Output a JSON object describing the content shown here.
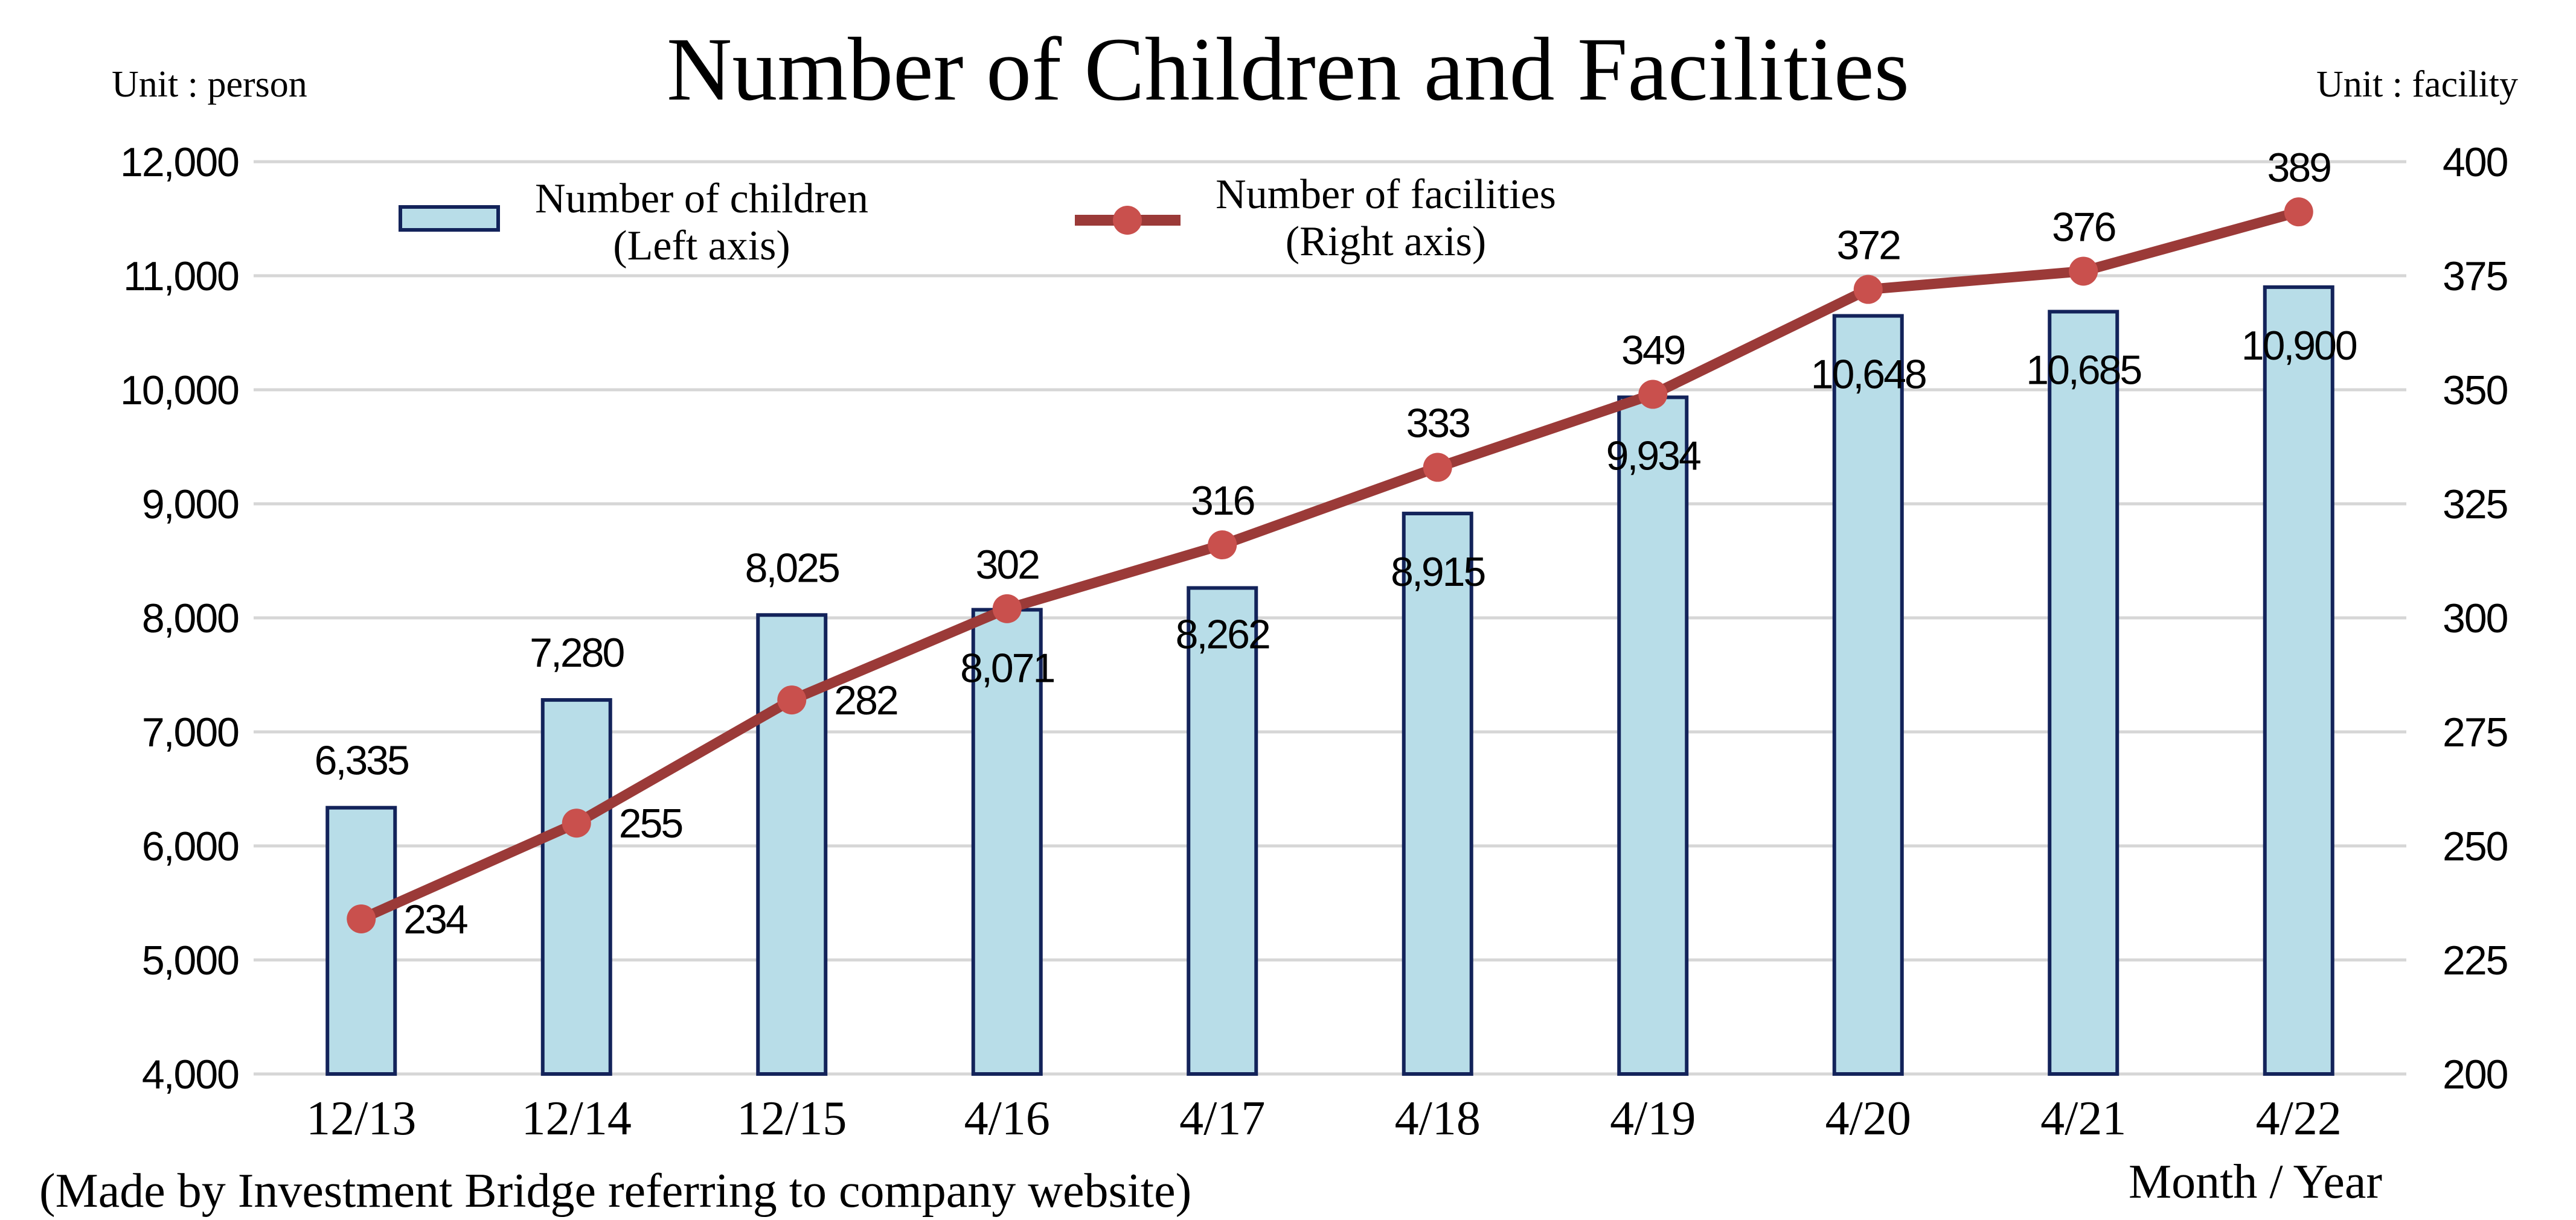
{
  "chart_data": {
    "type": "bar",
    "title": "Number of Children and Facilities",
    "left_unit": "Unit : person",
    "right_unit": "Unit : facility",
    "xlabel": "Month / Year",
    "source_note": "(Made by Investment Bridge referring to company website)",
    "categories": [
      "12/13",
      "12/14",
      "12/15",
      "4/16",
      "4/17",
      "4/18",
      "4/19",
      "4/20",
      "4/21",
      "4/22"
    ],
    "series": [
      {
        "name": "Number of children",
        "legend_sub": "(Left axis)",
        "type": "bar",
        "axis": "left",
        "values": [
          6335,
          7280,
          8025,
          8071,
          8262,
          8915,
          9934,
          10648,
          10685,
          10900
        ],
        "labels": [
          "6,335",
          "7,280",
          "8,025",
          "8,071",
          "8,262",
          "8,915",
          "9,934",
          "10,648",
          "10,685",
          "10,900"
        ]
      },
      {
        "name": "Number of facilities",
        "legend_sub": "(Right axis)",
        "type": "line",
        "axis": "right",
        "values": [
          234,
          255,
          282,
          302,
          316,
          333,
          349,
          372,
          376,
          389
        ],
        "labels": [
          "234",
          "255",
          "282",
          "302",
          "316",
          "333",
          "349",
          "372",
          "376",
          "389"
        ]
      }
    ],
    "y_left": {
      "ylim": [
        4000,
        12000
      ],
      "ticks": [
        4000,
        5000,
        6000,
        7000,
        8000,
        9000,
        10000,
        11000,
        12000
      ],
      "tick_labels": [
        "4,000",
        "5,000",
        "6,000",
        "7,000",
        "8,000",
        "9,000",
        "10,000",
        "11,000",
        "12,000"
      ]
    },
    "y_right": {
      "ylim": [
        200,
        400
      ],
      "ticks": [
        200,
        225,
        250,
        275,
        300,
        325,
        350,
        375,
        400
      ],
      "tick_labels": [
        "200",
        "225",
        "250",
        "275",
        "300",
        "325",
        "350",
        "375",
        "400"
      ]
    },
    "grid": true,
    "legend_position": "top-left",
    "colors": {
      "bar_fill": "#b8dde8",
      "bar_stroke": "#13235a",
      "line": "#9b3a38",
      "marker": "#c9504d",
      "grid": "#d6d6d6",
      "text": "#000000"
    }
  }
}
